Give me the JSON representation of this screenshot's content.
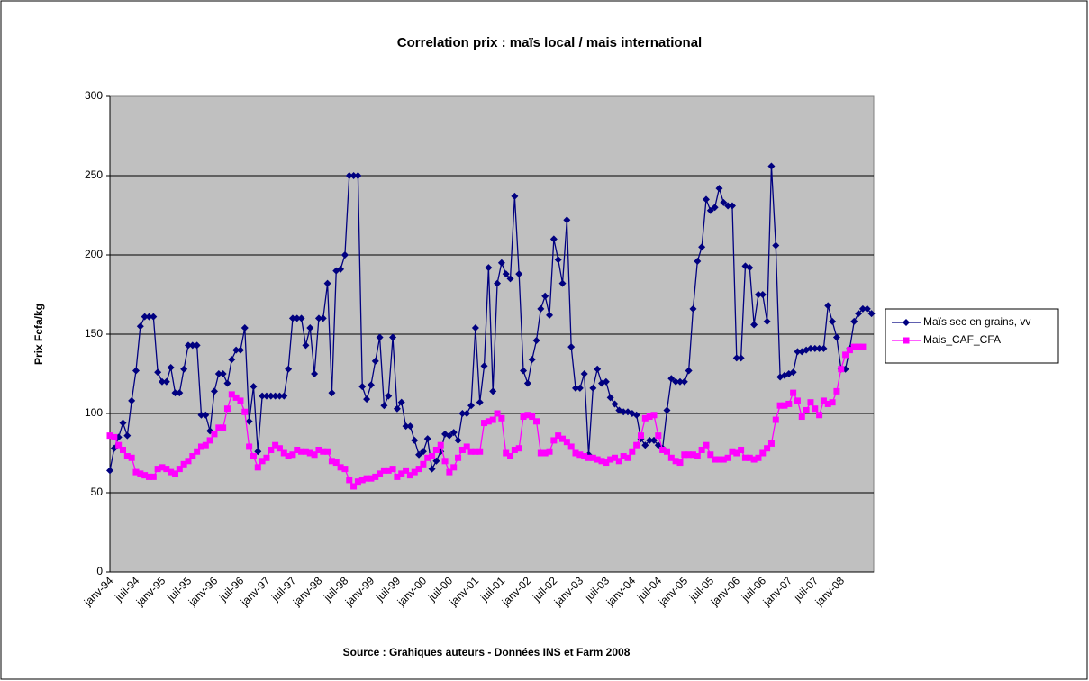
{
  "chart_data": {
    "type": "line",
    "title": "Correlation prix : maïs local / mais international",
    "y_label": "Prix Fcfa/kg",
    "source": "Source : Grahiques auteurs - Données INS et Farm 2008",
    "categories": [
      "janv-94",
      null,
      null,
      null,
      null,
      null,
      "juil-94",
      null,
      null,
      null,
      null,
      null,
      "janv-95",
      null,
      null,
      null,
      null,
      null,
      "juil-95",
      null,
      null,
      null,
      null,
      null,
      "janv-96",
      null,
      null,
      null,
      null,
      null,
      "juil-96",
      null,
      null,
      null,
      null,
      null,
      "janv-97",
      null,
      null,
      null,
      null,
      null,
      "juil-97",
      null,
      null,
      null,
      null,
      null,
      "janv-98",
      null,
      null,
      null,
      null,
      null,
      "juil-98",
      null,
      null,
      null,
      null,
      null,
      "janv-99",
      null,
      null,
      null,
      null,
      null,
      "juil-99",
      null,
      null,
      null,
      null,
      null,
      "janv-00",
      null,
      null,
      null,
      null,
      null,
      "juil-00",
      null,
      null,
      null,
      null,
      null,
      "janv-01",
      null,
      null,
      null,
      null,
      null,
      "juil-01",
      null,
      null,
      null,
      null,
      null,
      "janv-02",
      null,
      null,
      null,
      null,
      null,
      "juil-02",
      null,
      null,
      null,
      null,
      null,
      "janv-03",
      null,
      null,
      null,
      null,
      null,
      "juil-03",
      null,
      null,
      null,
      null,
      null,
      "janv-04",
      null,
      null,
      null,
      null,
      null,
      "juil-04",
      null,
      null,
      null,
      null,
      null,
      "janv-05",
      null,
      null,
      null,
      null,
      null,
      "juil-05",
      null,
      null,
      null,
      null,
      null,
      "janv-06",
      null,
      null,
      null,
      null,
      null,
      "juil-06",
      null,
      null,
      null,
      null,
      null,
      "janv-07",
      null,
      null,
      null,
      null,
      null,
      "juil-07",
      null,
      null,
      null,
      null,
      null,
      "janv-08",
      null,
      null,
      null,
      null,
      null,
      null,
      null
    ],
    "series": [
      {
        "name": "Maïs sec en  grains, vv",
        "color": "#000080",
        "marker": "diamond",
        "values": [
          64,
          78,
          85,
          94,
          86,
          108,
          127,
          155,
          161,
          161,
          161,
          126,
          120,
          120,
          129,
          113,
          113,
          128,
          143,
          143,
          143,
          99,
          99,
          89,
          114,
          125,
          125,
          119,
          134,
          140,
          140,
          154,
          95,
          117,
          76,
          111,
          111,
          111,
          111,
          111,
          111,
          128,
          160,
          160,
          160,
          143,
          154,
          125,
          160,
          160,
          182,
          113,
          190,
          191,
          200,
          250,
          250,
          250,
          117,
          109,
          118,
          133,
          148,
          105,
          111,
          148,
          103,
          107,
          92,
          92,
          83,
          74,
          76,
          84,
          65,
          70,
          76,
          87,
          86,
          88,
          83,
          100,
          100,
          105,
          154,
          107,
          130,
          192,
          114,
          182,
          195,
          188,
          185,
          237,
          188,
          127,
          119,
          134,
          146,
          166,
          174,
          162,
          210,
          197,
          182,
          222,
          142,
          116,
          116,
          125,
          74,
          116,
          128,
          119,
          120,
          110,
          106,
          102,
          101,
          101,
          100,
          99,
          84,
          80,
          83,
          83,
          80,
          78,
          102,
          122,
          120,
          120,
          120,
          127,
          166,
          196,
          205,
          235,
          228,
          230,
          242,
          233,
          231,
          231,
          135,
          135,
          193,
          192,
          156,
          175,
          175,
          158,
          256,
          206,
          123,
          124,
          125,
          126,
          139,
          139,
          140,
          141,
          141,
          141,
          141,
          168,
          158,
          148,
          128,
          128,
          141,
          158,
          163,
          166,
          166,
          163
        ]
      },
      {
        "name": "Mais_CAF_CFA",
        "color": "#ff00ff",
        "marker": "square",
        "values": [
          86,
          85,
          80,
          77,
          73,
          72,
          63,
          62,
          61,
          60,
          60,
          65,
          66,
          65,
          63,
          62,
          65,
          68,
          70,
          73,
          76,
          79,
          80,
          83,
          87,
          91,
          91,
          103,
          112,
          110,
          108,
          101,
          79,
          73,
          66,
          70,
          72,
          77,
          80,
          78,
          75,
          73,
          74,
          77,
          76,
          76,
          75,
          74,
          77,
          76,
          76,
          70,
          69,
          66,
          65,
          58,
          54,
          57,
          58,
          59,
          59,
          60,
          62,
          64,
          64,
          65,
          60,
          62,
          64,
          61,
          63,
          65,
          68,
          72,
          73,
          77,
          80,
          70,
          63,
          66,
          72,
          77,
          79,
          76,
          76,
          76,
          94,
          95,
          96,
          100,
          97,
          75,
          73,
          77,
          78,
          98,
          99,
          98,
          95,
          75,
          75,
          76,
          83,
          86,
          84,
          82,
          79,
          75,
          74,
          73,
          72,
          72,
          71,
          70,
          69,
          71,
          72,
          70,
          73,
          72,
          76,
          80,
          86,
          97,
          98,
          99,
          86,
          77,
          76,
          72,
          70,
          69,
          74,
          74,
          74,
          73,
          77,
          80,
          74,
          71,
          71,
          71,
          72,
          76,
          75,
          77,
          72,
          72,
          71,
          72,
          75,
          78,
          81,
          96,
          105,
          105,
          106,
          113,
          108,
          98,
          102,
          107,
          103,
          99,
          108,
          106,
          107,
          114,
          128,
          137,
          140,
          142,
          142,
          142,
          null,
          null
        ]
      }
    ],
    "ylim": [
      0,
      300
    ],
    "yticks": [
      0,
      50,
      100,
      150,
      200,
      250,
      300
    ],
    "grid": true,
    "legend": "right"
  }
}
